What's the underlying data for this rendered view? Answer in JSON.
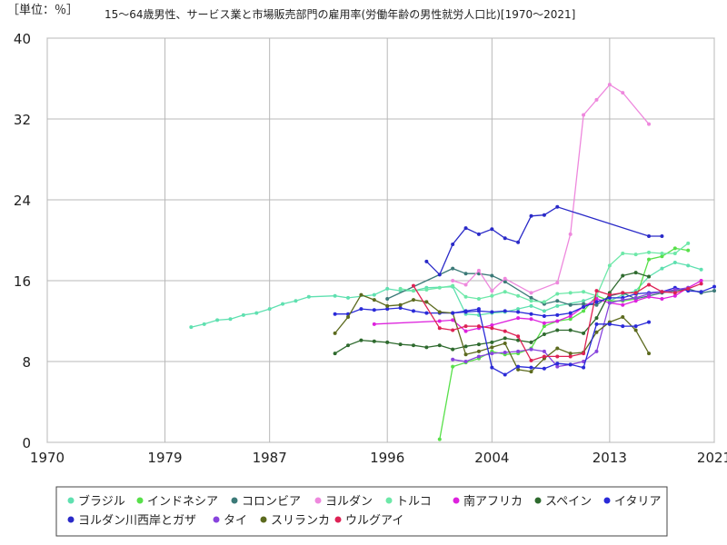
{
  "colors": {
    "ブラジル": "#5fe0b0",
    "インドネシア": "#58e04a",
    "コロンビア": "#3c7a78",
    "ヨルダン": "#ee88dd",
    "トルコ": "#6de8a8",
    "南アフリカ": "#dd22dd",
    "スペイン": "#2e6a2e",
    "イタリア": "#2a2ad8",
    "ヨルダン川西岸とガザ": "#2a2ac8",
    "タイ": "#8844dd",
    "スリランカ": "#5c6a1e",
    "ウルグアイ": "#dd2255"
  },
  "chart_data": {
    "type": "line",
    "unit_label": "［単位：％］",
    "title": "15〜64歳男性、サービス業と市場販売部門の雇用率(労働年齢の男性就労人口比)[1970〜2021]",
    "xlim": [
      1970,
      2021
    ],
    "ylim": [
      0,
      40
    ],
    "x_ticks": [
      1970,
      1979,
      1987,
      1996,
      2004,
      2013,
      2021
    ],
    "y_ticks": [
      0,
      8,
      16,
      24,
      32,
      40
    ],
    "grid": true,
    "legend_position": "bottom",
    "series": [
      {
        "name": "ブラジル",
        "x": [
          1981,
          1982,
          1983,
          1984,
          1985,
          1986,
          1987,
          1988,
          1989,
          1990,
          1992,
          1993,
          1995,
          1996,
          1997,
          1998,
          1999,
          2001,
          2002,
          2003,
          2004,
          2005,
          2006,
          2007,
          2008,
          2009,
          2011,
          2012,
          2013,
          2014,
          2015,
          2016,
          2017,
          2018,
          2019,
          2020
        ],
        "y": [
          11.4,
          11.7,
          12.1,
          12.2,
          12.6,
          12.8,
          13.2,
          13.7,
          14.0,
          14.4,
          14.5,
          14.3,
          14.6,
          15.2,
          15.0,
          15.0,
          15.3,
          15.4,
          12.7,
          12.6,
          12.8,
          12.9,
          13.2,
          13.5,
          13.0,
          13.5,
          14.0,
          14.5,
          14.0,
          14.6,
          15.0,
          16.4,
          17.2,
          17.8,
          17.5,
          17.1
        ]
      },
      {
        "name": "インドネシア",
        "x": [
          2000,
          2001,
          2002,
          2003,
          2004,
          2005,
          2006,
          2007,
          2008,
          2009,
          2010,
          2011,
          2012,
          2013,
          2014,
          2015,
          2016,
          2017,
          2018,
          2019
        ],
        "y": [
          0.3,
          7.5,
          7.9,
          8.3,
          9.0,
          8.7,
          8.8,
          9.3,
          11.5,
          12.0,
          12.2,
          13.0,
          14.5,
          14.0,
          14.0,
          14.2,
          18.1,
          18.4,
          19.2,
          19.0
        ]
      },
      {
        "name": "コロンビア",
        "x": [
          1996,
          2001,
          2002,
          2003,
          2004,
          2005,
          2007,
          2008,
          2009,
          2010,
          2011,
          2012,
          2013,
          2014,
          2015,
          2016,
          2017,
          2018,
          2019,
          2020,
          2021
        ],
        "y": [
          14.2,
          17.2,
          16.7,
          16.7,
          16.5,
          15.9,
          14.3,
          13.7,
          14.0,
          13.6,
          13.7,
          13.6,
          14.5,
          14.8,
          14.2,
          14.5,
          14.8,
          15.0,
          15.2,
          14.8,
          15.0
        ]
      },
      {
        "name": "ヨルダン",
        "x": [
          2001,
          2002,
          2003,
          2004,
          2005,
          2007,
          2009,
          2010,
          2011,
          2012,
          2013,
          2014,
          2016
        ],
        "y": [
          16.0,
          15.6,
          17.0,
          15.0,
          16.2,
          14.8,
          15.8,
          20.6,
          32.4,
          33.9,
          35.4,
          34.6,
          31.5
        ]
      },
      {
        "name": "トルコ",
        "x": [
          1997,
          1998,
          1999,
          2000,
          2001,
          2002,
          2003,
          2004,
          2005,
          2006,
          2007,
          2008,
          2009,
          2010,
          2011,
          2012,
          2013,
          2014,
          2015,
          2016,
          2017,
          2018,
          2019
        ],
        "y": [
          15.2,
          15.0,
          15.1,
          15.3,
          15.5,
          14.4,
          14.2,
          14.5,
          14.9,
          14.5,
          14.0,
          13.9,
          14.7,
          14.8,
          14.9,
          14.5,
          17.5,
          18.7,
          18.6,
          18.8,
          18.7,
          18.7,
          19.7
        ]
      },
      {
        "name": "南アフリカ",
        "x": [
          1995,
          2000,
          2001,
          2002,
          2003,
          2004,
          2006,
          2007,
          2008,
          2009,
          2010,
          2011,
          2012,
          2013,
          2014,
          2015,
          2016,
          2017,
          2018,
          2019,
          2020
        ],
        "y": [
          11.7,
          12.0,
          12.1,
          11.0,
          11.3,
          11.6,
          12.3,
          12.2,
          11.8,
          12.0,
          12.5,
          13.4,
          14.2,
          13.8,
          13.6,
          14.0,
          14.4,
          14.2,
          14.5,
          15.3,
          16.0
        ]
      },
      {
        "name": "スペイン",
        "x": [
          1992,
          1993,
          1994,
          1995,
          1996,
          1997,
          1998,
          1999,
          2000,
          2001,
          2002,
          2003,
          2004,
          2005,
          2006,
          2007,
          2008,
          2009,
          2010,
          2011,
          2012,
          2013,
          2014,
          2015,
          2016
        ],
        "y": [
          8.8,
          9.6,
          10.1,
          10.0,
          9.9,
          9.7,
          9.6,
          9.4,
          9.6,
          9.2,
          9.5,
          9.7,
          9.9,
          10.3,
          10.1,
          9.9,
          10.7,
          11.1,
          11.1,
          10.8,
          12.3,
          14.8,
          16.5,
          16.8,
          16.4
        ]
      },
      {
        "name": "イタリア",
        "x": [
          1992,
          1993,
          1994,
          1995,
          1996,
          1997,
          1998,
          1999,
          2000,
          2001,
          2002,
          2003,
          2004,
          2005,
          2006,
          2007,
          2008,
          2009,
          2010,
          2011,
          2012,
          2013,
          2014,
          2015,
          2016,
          2017,
          2018,
          2019,
          2020,
          2021
        ],
        "y": [
          12.7,
          12.7,
          13.2,
          13.1,
          13.2,
          13.3,
          13.0,
          12.8,
          12.8,
          12.8,
          12.9,
          13.0,
          12.9,
          13.0,
          12.9,
          12.7,
          12.5,
          12.6,
          12.8,
          13.4,
          13.9,
          14.3,
          14.3,
          14.7,
          14.8,
          14.9,
          15.3,
          15.0,
          14.9,
          15.4
        ]
      },
      {
        "name": "ヨルダン川西岸とガザ",
        "x": [
          1999,
          2000,
          2001,
          2002,
          2003,
          2004,
          2005,
          2006,
          2007,
          2008,
          2009,
          2016,
          2017
        ],
        "y": [
          17.9,
          16.6,
          19.6,
          21.2,
          20.6,
          21.1,
          20.2,
          19.8,
          22.4,
          22.5,
          23.3,
          20.4,
          20.4
        ]
      },
      {
        "name": "タイ",
        "x": [
          2001,
          2002,
          2003,
          2004,
          2005,
          2006,
          2007,
          2008,
          2009,
          2010,
          2011,
          2012,
          2013,
          2014,
          2015,
          2016,
          2017,
          2018,
          2019
        ],
        "y": [
          8.2,
          8.0,
          8.5,
          8.8,
          8.9,
          9.0,
          9.2,
          9.0,
          7.5,
          7.7,
          8.0,
          9.0,
          13.8,
          14.1,
          14.3,
          14.7,
          14.9,
          15.1,
          15.3
        ]
      },
      {
        "name": "スリランカ",
        "x": [
          1992,
          1993,
          1994,
          1995,
          1996,
          1997,
          1998,
          1999,
          2000,
          2001,
          2002,
          2003,
          2004,
          2005,
          2006,
          2007,
          2008,
          2009,
          2010,
          2011,
          2012,
          2013,
          2014,
          2015,
          2016
        ],
        "y": [
          10.8,
          12.4,
          14.6,
          14.1,
          13.5,
          13.6,
          14.1,
          13.9,
          12.9,
          12.8,
          8.7,
          9.0,
          9.4,
          9.8,
          7.2,
          7.0,
          8.3,
          9.3,
          8.8,
          8.9,
          10.9,
          11.9,
          12.4,
          11.1,
          8.8
        ]
      },
      {
        "name": "ウルグアイ",
        "x": [
          1998,
          2000,
          2001,
          2002,
          2003,
          2004,
          2005,
          2006,
          2007,
          2008,
          2009,
          2010,
          2011,
          2012,
          2013,
          2014,
          2015,
          2016,
          2017,
          2018,
          2019,
          2020
        ],
        "y": [
          15.5,
          11.3,
          11.1,
          11.5,
          11.5,
          11.3,
          11.0,
          10.5,
          8.1,
          8.5,
          8.5,
          8.5,
          8.8,
          15.0,
          14.6,
          14.8,
          14.8,
          15.6,
          14.9,
          14.8,
          15.2,
          15.7
        ]
      }
    ]
  },
  "extra_series": [
    {
      "color": "#2a2ad8",
      "x": [
        2001,
        2002,
        2003,
        2004,
        2005,
        2006,
        2007,
        2008,
        2009,
        2010,
        2011,
        2012,
        2013,
        2014,
        2015,
        2016
      ],
      "y": [
        12.8,
        13.0,
        13.2,
        7.4,
        6.7,
        7.5,
        7.4,
        7.3,
        7.8,
        7.7,
        7.4,
        11.7,
        11.7,
        11.5,
        11.5,
        11.9
      ]
    }
  ]
}
